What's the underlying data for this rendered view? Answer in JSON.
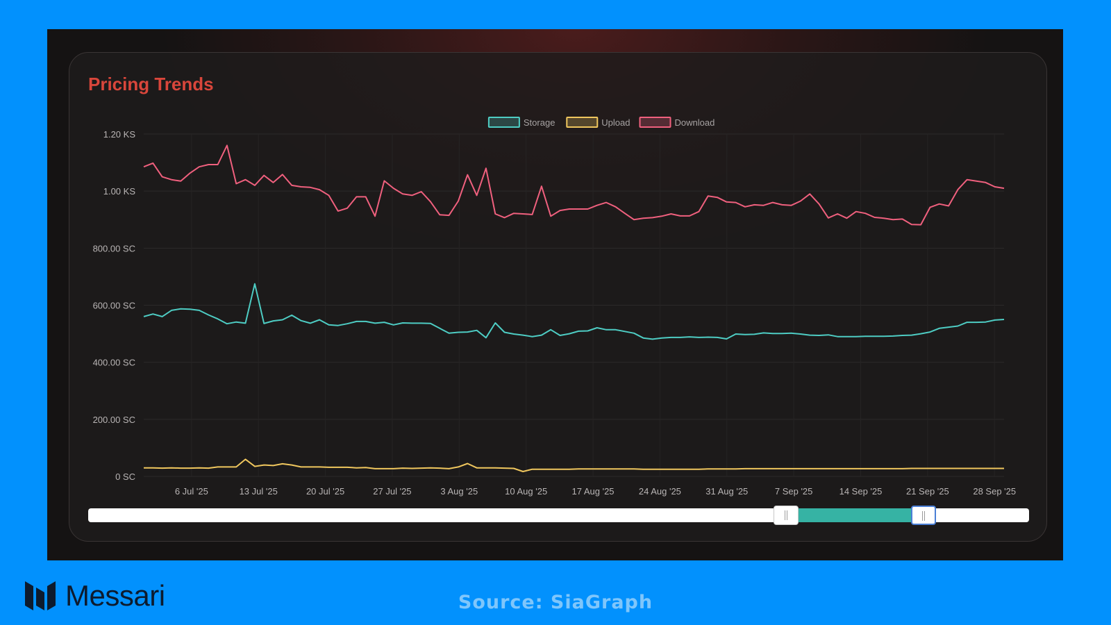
{
  "card": {
    "title": "Pricing Trends"
  },
  "brand": {
    "name": "Messari",
    "logo_icon": "messari-logo-icon"
  },
  "footer": {
    "source": "Source: SiaGraph"
  },
  "colors": {
    "background": "#0291fd",
    "title": "#d9463b",
    "storage": "#4ecdc4",
    "upload": "#f0c75e",
    "download": "#f0607e",
    "slider_range": "#36b3a4"
  },
  "chart_data": {
    "type": "line",
    "title": "Pricing Trends",
    "legend_position": "top-center",
    "grid": true,
    "y_ticks": [
      "0 SC",
      "200.00 SC",
      "400.00 SC",
      "600.00 SC",
      "800.00 SC",
      "1.00 KS",
      "1.20 KS"
    ],
    "ylim": [
      0,
      1200
    ],
    "x_ticks": [
      "6 Jul '25",
      "13 Jul '25",
      "20 Jul '25",
      "27 Jul '25",
      "3 Aug '25",
      "10 Aug '25",
      "17 Aug '25",
      "24 Aug '25",
      "31 Aug '25",
      "7 Sep '25",
      "14 Sep '25",
      "21 Sep '25",
      "28 Sep '25"
    ],
    "x_start_date": "2025-07-01",
    "x_end_date": "2025-09-29",
    "series": [
      {
        "name": "Storage",
        "color": "#4ecdc4",
        "values": [
          560,
          569,
          560,
          582,
          587,
          586,
          582,
          566,
          552,
          535,
          541,
          537,
          675,
          536,
          545,
          549,
          565,
          546,
          537,
          549,
          531,
          529,
          535,
          543,
          543,
          537,
          540,
          531,
          538,
          537,
          537,
          536,
          519,
          502,
          505,
          506,
          512,
          486,
          538,
          505,
          499,
          495,
          490,
          495,
          514,
          494,
          500,
          509,
          510,
          521,
          514,
          514,
          508,
          502,
          485,
          481,
          485,
          487,
          487,
          489,
          487,
          488,
          487,
          482,
          499,
          497,
          498,
          503,
          501,
          501,
          502,
          499,
          495,
          494,
          496,
          490,
          490,
          490,
          491,
          491,
          491,
          492,
          494,
          495,
          500,
          506,
          519,
          523,
          527,
          540,
          540,
          541,
          548,
          550
        ]
      },
      {
        "name": "Upload",
        "color": "#f0c75e",
        "values": [
          30,
          30,
          29,
          30,
          29,
          29,
          30,
          29,
          33,
          33,
          33,
          60,
          35,
          40,
          38,
          44,
          40,
          33,
          33,
          33,
          32,
          32,
          32,
          30,
          31,
          27,
          27,
          27,
          29,
          28,
          29,
          30,
          29,
          27,
          33,
          45,
          30,
          30,
          30,
          29,
          28,
          17,
          25,
          25,
          25,
          25,
          25,
          26,
          26,
          26,
          26,
          26,
          26,
          26,
          25,
          25,
          25,
          25,
          25,
          25,
          25,
          26,
          26,
          26,
          26,
          27,
          27,
          27,
          27,
          27,
          27,
          27,
          27,
          27,
          27,
          27,
          27,
          27,
          27,
          27,
          27,
          27,
          27,
          28,
          28,
          28,
          28,
          28,
          28,
          28,
          28,
          28,
          28,
          28
        ]
      },
      {
        "name": "Download",
        "color": "#f0607e",
        "values": [
          1085,
          1098,
          1050,
          1040,
          1035,
          1063,
          1085,
          1093,
          1093,
          1160,
          1026,
          1040,
          1020,
          1055,
          1030,
          1058,
          1020,
          1015,
          1013,
          1005,
          985,
          930,
          940,
          980,
          980,
          912,
          1036,
          1010,
          990,
          985,
          998,
          963,
          917,
          915,
          965,
          1057,
          985,
          1080,
          920,
          907,
          922,
          920,
          918,
          1017,
          912,
          932,
          937,
          937,
          937,
          950,
          960,
          945,
          922,
          900,
          905,
          907,
          912,
          920,
          913,
          913,
          928,
          983,
          978,
          962,
          960,
          945,
          952,
          950,
          960,
          952,
          950,
          965,
          990,
          955,
          906,
          920,
          905,
          928,
          922,
          908,
          905,
          900,
          902,
          883,
          882,
          943,
          955,
          948,
          1005,
          1040,
          1035,
          1030,
          1015,
          1010
        ]
      }
    ]
  },
  "slider": {
    "range_start": 0.742,
    "range_end": 0.888
  }
}
